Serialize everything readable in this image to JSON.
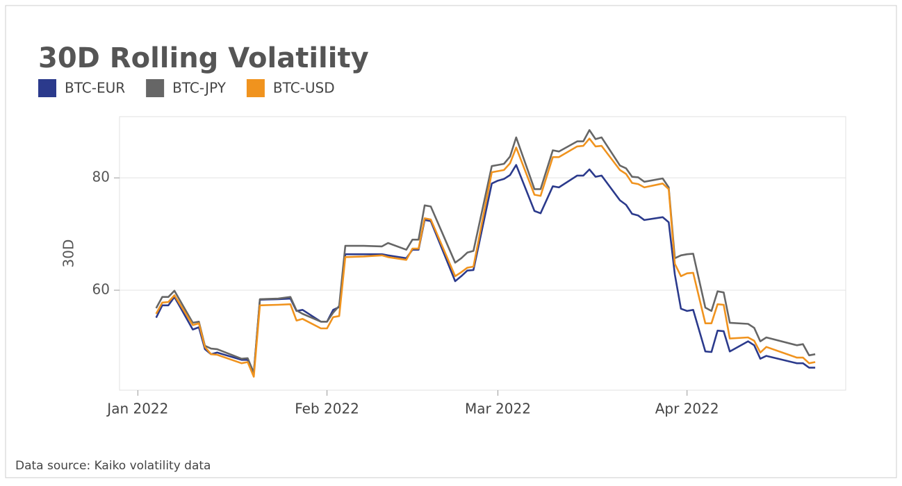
{
  "chart_data": {
    "type": "line",
    "title": "30D Rolling Volatility",
    "y_label": "30D",
    "source": "Data source: Kaiko volatility data",
    "legend": "top-left",
    "grid": true,
    "x": [
      "2022-01-04",
      "2022-01-05",
      "2022-01-06",
      "2022-01-07",
      "2022-01-10",
      "2022-01-11",
      "2022-01-12",
      "2022-01-13",
      "2022-01-14",
      "2022-01-18",
      "2022-01-19",
      "2022-01-20",
      "2022-01-21",
      "2022-01-24",
      "2022-01-26",
      "2022-01-27",
      "2022-01-28",
      "2022-01-31",
      "2022-02-01",
      "2022-02-02",
      "2022-02-03",
      "2022-02-04",
      "2022-02-07",
      "2022-02-10",
      "2022-02-11",
      "2022-02-14",
      "2022-02-15",
      "2022-02-16",
      "2022-02-17",
      "2022-02-18",
      "2022-02-22",
      "2022-02-23",
      "2022-02-24",
      "2022-02-25",
      "2022-02-28",
      "2022-03-01",
      "2022-03-02",
      "2022-03-03",
      "2022-03-04",
      "2022-03-07",
      "2022-03-08",
      "2022-03-10",
      "2022-03-11",
      "2022-03-14",
      "2022-03-15",
      "2022-03-16",
      "2022-03-17",
      "2022-03-18",
      "2022-03-21",
      "2022-03-22",
      "2022-03-23",
      "2022-03-24",
      "2022-03-25",
      "2022-03-28",
      "2022-03-29",
      "2022-03-30",
      "2022-03-31",
      "2022-04-01",
      "2022-04-02",
      "2022-04-04",
      "2022-04-05",
      "2022-04-06",
      "2022-04-07",
      "2022-04-08",
      "2022-04-11",
      "2022-04-12",
      "2022-04-13",
      "2022-04-14",
      "2022-04-19",
      "2022-04-20",
      "2022-04-21",
      "2022-04-22"
    ],
    "series": [
      {
        "name": "BTC-EUR",
        "color": "#2b3a8c",
        "values": [
          55.1,
          57.3,
          57.3,
          58.8,
          53.0,
          53.4,
          49.5,
          48.6,
          48.9,
          47.6,
          47.6,
          45.2,
          58.3,
          58.4,
          58.5,
          56.3,
          56.5,
          54.4,
          54.4,
          56.5,
          57.0,
          66.4,
          66.4,
          66.4,
          66.2,
          65.7,
          67.2,
          67.2,
          72.5,
          72.3,
          61.6,
          62.5,
          63.5,
          63.6,
          79.0,
          79.5,
          79.8,
          80.5,
          82.3,
          74.1,
          73.7,
          78.5,
          78.3,
          80.4,
          80.4,
          81.5,
          80.2,
          80.4,
          76.0,
          75.2,
          73.6,
          73.3,
          72.5,
          73.0,
          72.1,
          62.8,
          56.7,
          56.3,
          56.5,
          49.1,
          49.0,
          52.8,
          52.7,
          49.1,
          50.9,
          50.2,
          47.8,
          48.3,
          47.0,
          47.0,
          46.2,
          46.2
        ]
      },
      {
        "name": "BTC-JPY",
        "color": "#666666",
        "values": [
          56.8,
          58.8,
          58.8,
          59.9,
          54.2,
          54.4,
          50.1,
          49.6,
          49.5,
          47.8,
          47.9,
          45.3,
          58.4,
          58.5,
          58.8,
          56.4,
          55.8,
          54.4,
          54.4,
          56.0,
          57.2,
          67.9,
          67.9,
          67.8,
          68.4,
          67.2,
          69.0,
          69.0,
          75.1,
          74.9,
          64.9,
          65.7,
          66.7,
          67.0,
          82.1,
          82.3,
          82.5,
          83.8,
          87.2,
          78.0,
          78.0,
          84.9,
          84.7,
          86.5,
          86.5,
          88.5,
          86.9,
          87.2,
          82.2,
          81.7,
          80.2,
          80.1,
          79.3,
          79.9,
          78.3,
          65.7,
          66.2,
          66.4,
          66.5,
          56.9,
          56.3,
          59.8,
          59.6,
          54.2,
          54.0,
          53.3,
          50.9,
          51.6,
          50.2,
          50.4,
          48.4,
          48.6
        ]
      },
      {
        "name": "BTC-USD",
        "color": "#f0931e",
        "values": [
          55.8,
          57.8,
          57.9,
          59.1,
          53.8,
          54.1,
          49.9,
          48.6,
          48.5,
          47.0,
          47.2,
          44.6,
          57.3,
          57.4,
          57.5,
          54.6,
          54.9,
          53.2,
          53.2,
          55.2,
          55.4,
          65.9,
          66.0,
          66.2,
          65.9,
          65.4,
          67.4,
          67.4,
          72.8,
          72.6,
          62.5,
          63.2,
          64.0,
          64.2,
          81.0,
          81.2,
          81.4,
          82.6,
          85.4,
          77.0,
          76.8,
          83.7,
          83.7,
          85.6,
          85.7,
          87.0,
          85.6,
          85.7,
          81.4,
          80.7,
          79.1,
          78.9,
          78.3,
          79.0,
          78.0,
          64.7,
          62.5,
          63.0,
          63.1,
          54.1,
          54.1,
          57.5,
          57.4,
          51.4,
          51.6,
          51.0,
          48.9,
          49.9,
          48.0,
          48.0,
          47.0,
          47.2
        ]
      }
    ],
    "xlim": [
      "2021-12-29",
      "2022-04-27"
    ],
    "xticks": [
      {
        "value": "2022-01-01",
        "label": "Jan 2022"
      },
      {
        "value": "2022-02-01",
        "label": "Feb 2022"
      },
      {
        "value": "2022-03-01",
        "label": "Mar 2022"
      },
      {
        "value": "2022-04-01",
        "label": "Apr 2022"
      }
    ],
    "ylim": [
      42.2,
      90.9
    ],
    "yticks": [
      60,
      80
    ]
  }
}
